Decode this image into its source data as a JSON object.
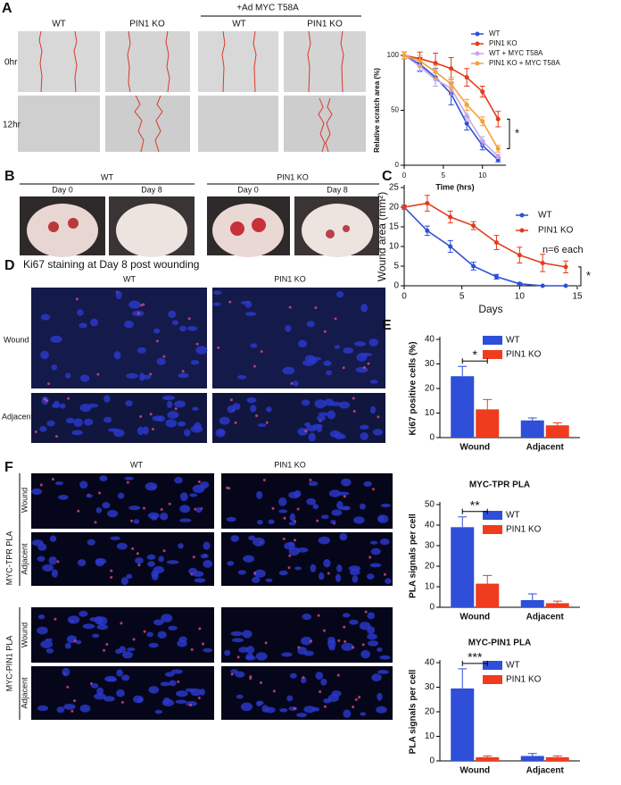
{
  "figure": {
    "A": {
      "label": "A",
      "headers": [
        "WT",
        "PIN1 KO",
        "WT",
        "PIN1 KO"
      ],
      "group_header": "+Ad MYC T58A",
      "rows": [
        "0hr",
        "12hr"
      ]
    },
    "B": {
      "label": "B",
      "groups": [
        "WT",
        "PIN1 KO"
      ],
      "headers": [
        "Day 0",
        "Day 8",
        "Day 0",
        "Day 8"
      ]
    },
    "C": {
      "label": "C"
    },
    "D": {
      "label": "D",
      "title": "Ki67 staining at Day 8 post wounding",
      "headers": [
        "WT",
        "PIN1 KO"
      ],
      "rows": [
        "Wound",
        "Adjacent"
      ]
    },
    "E": {
      "label": "E"
    },
    "F": {
      "label": "F",
      "headers": [
        "WT",
        "PIN1 KO"
      ],
      "groups": [
        {
          "name": "MYC-TPR PLA",
          "rows": [
            "Wound",
            "Adjacent"
          ]
        },
        {
          "name": "MYC-PIN1 PLA",
          "rows": [
            "Wound",
            "Adjacent"
          ]
        }
      ]
    }
  },
  "chart_data": [
    {
      "type": "line",
      "x_label": "Time (hrs)",
      "y_label": "Relative scratch area (%)",
      "x": [
        0,
        2,
        4,
        6,
        8,
        10,
        12
      ],
      "xlim": [
        0,
        13
      ],
      "xticks": [
        0,
        5,
        10
      ],
      "ylim": [
        0,
        100
      ],
      "yticks": [
        0,
        50,
        100
      ],
      "annotation": "*",
      "series": [
        {
          "name": "WT",
          "color": "#2f4fd8",
          "values": [
            100,
            92,
            80,
            65,
            38,
            18,
            5
          ],
          "errors": [
            3,
            6,
            8,
            10,
            6,
            4,
            2
          ]
        },
        {
          "name": "PIN1 KO",
          "color": "#e23b1c",
          "values": [
            100,
            97,
            93,
            88,
            80,
            67,
            42
          ],
          "errors": [
            3,
            6,
            9,
            10,
            8,
            5,
            7
          ]
        },
        {
          "name": "WT + MYC T58A",
          "color": "#c6a6ea",
          "values": [
            100,
            90,
            78,
            70,
            45,
            22,
            8
          ],
          "errors": [
            3,
            5,
            6,
            6,
            5,
            4,
            2
          ]
        },
        {
          "name": "PIN1 KO + MYC T58A",
          "color": "#f2a23a",
          "values": [
            100,
            95,
            85,
            74,
            55,
            40,
            15
          ],
          "errors": [
            3,
            5,
            6,
            6,
            5,
            4,
            3
          ]
        }
      ]
    },
    {
      "type": "line",
      "x_label": "Days",
      "y_label": "Wound area (mm²)",
      "x": [
        0,
        2,
        4,
        6,
        8,
        10,
        12,
        14
      ],
      "xlim": [
        0,
        15
      ],
      "xticks": [
        0,
        5,
        10,
        15
      ],
      "ylim": [
        0,
        25
      ],
      "yticks": [
        0,
        5,
        10,
        15,
        20,
        25
      ],
      "note": "n=6 each",
      "annotation": "*",
      "series": [
        {
          "name": "WT",
          "color": "#2f4fd8",
          "values": [
            20,
            14,
            10,
            5,
            2.3,
            0.5,
            0,
            0
          ],
          "errors": [
            0.5,
            1.2,
            1.5,
            1,
            0.6,
            0.3,
            0,
            0
          ]
        },
        {
          "name": "PIN1 KO",
          "color": "#e23b1c",
          "values": [
            20,
            21,
            17.5,
            15.3,
            11,
            7.8,
            5.8,
            4.8
          ],
          "errors": [
            0.5,
            2,
            1.5,
            1,
            1.8,
            2,
            2.2,
            1.5
          ]
        }
      ]
    },
    {
      "type": "bar",
      "y_label": "Ki67 positive cells (%)",
      "categories": [
        "Wound",
        "Adjacent"
      ],
      "ylim": [
        0,
        40
      ],
      "yticks": [
        0,
        10,
        20,
        30,
        40
      ],
      "annotation": "*",
      "series": [
        {
          "name": "WT",
          "color": "#2f4fd8",
          "values": [
            25,
            7
          ],
          "errors": [
            4,
            1
          ]
        },
        {
          "name": "PIN1 KO",
          "color": "#f03c1e",
          "values": [
            11.5,
            5
          ],
          "errors": [
            4,
            1
          ]
        }
      ]
    },
    {
      "type": "bar",
      "title": "MYC-TPR PLA",
      "y_label": "PLA  signals per cell",
      "categories": [
        "Wound",
        "Adjacent"
      ],
      "ylim": [
        0,
        50
      ],
      "yticks": [
        0,
        10,
        20,
        30,
        40,
        50
      ],
      "annotation": "**",
      "series": [
        {
          "name": "WT",
          "color": "#2f4fd8",
          "values": [
            39,
            3.5
          ],
          "errors": [
            5,
            3
          ]
        },
        {
          "name": "PIN1 KO",
          "color": "#f03c1e",
          "values": [
            11.5,
            2
          ],
          "errors": [
            4,
            1
          ]
        }
      ]
    },
    {
      "type": "bar",
      "title": "MYC-PIN1 PLA",
      "y_label": "PLA  signals per cell",
      "categories": [
        "Wound",
        "Adjacent"
      ],
      "ylim": [
        0,
        40
      ],
      "yticks": [
        0,
        10,
        20,
        30,
        40
      ],
      "annotation": "***",
      "series": [
        {
          "name": "WT",
          "color": "#2f4fd8",
          "values": [
            29.5,
            2
          ],
          "errors": [
            8,
            1
          ]
        },
        {
          "name": "PIN1 KO",
          "color": "#f03c1e",
          "values": [
            1.5,
            1.5
          ],
          "errors": [
            0.5,
            0.5
          ]
        }
      ]
    }
  ]
}
